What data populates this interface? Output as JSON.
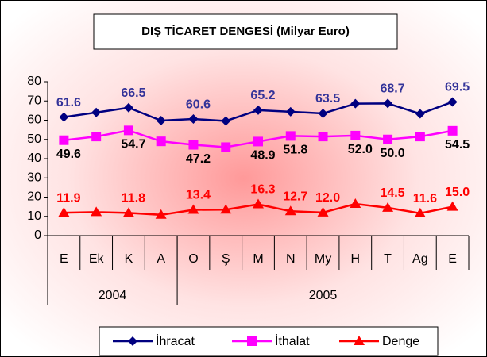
{
  "chart_data": {
    "type": "line",
    "title": "DIŞ TİCARET DENGESİ (Milyar Euro)",
    "categories": [
      "E",
      "Ek",
      "K",
      "A",
      "O",
      "Ş",
      "M",
      "N",
      "My",
      "H",
      "T",
      "Ag",
      "E"
    ],
    "groups": [
      {
        "label": "2004",
        "span": 4
      },
      {
        "label": "2005",
        "span": 9
      }
    ],
    "series": [
      {
        "name": "İhracat",
        "color": "#000080",
        "label_color": "#333399",
        "marker": "diamond",
        "values": [
          61.6,
          64,
          66.5,
          59.8,
          60.6,
          59.6,
          65.2,
          64.4,
          63.5,
          68.6,
          68.7,
          63.3,
          69.5
        ],
        "value_labels": [
          "61.6",
          null,
          "66.5",
          null,
          "60.6",
          null,
          "65.2",
          null,
          "63.5",
          null,
          "68.7",
          null,
          "69.5"
        ]
      },
      {
        "name": "İthalat",
        "color": "#ff00ff",
        "label_color": "#000000",
        "marker": "square",
        "values": [
          49.6,
          51.5,
          54.7,
          49,
          47.2,
          46,
          48.9,
          51.8,
          51.5,
          52,
          50,
          51.5,
          54.5
        ],
        "value_labels": [
          "49.6",
          null,
          "54.7",
          null,
          "47.2",
          null,
          "48.9",
          "51.8",
          null,
          "52.0",
          "50.0",
          null,
          "54.5"
        ]
      },
      {
        "name": "Denge",
        "color": "#ff0000",
        "label_color": "#ff0000",
        "marker": "triangle",
        "values": [
          11.9,
          12.2,
          11.8,
          10.8,
          13.4,
          13.5,
          16.3,
          12.7,
          12,
          16.5,
          14.5,
          11.6,
          15
        ],
        "value_labels": [
          "11.9",
          null,
          "11.8",
          null,
          "13.4",
          null,
          "16.3",
          "12.7",
          "12.0",
          null,
          "14.5",
          "11.6",
          "15.0"
        ]
      }
    ],
    "ylim": [
      0,
      80
    ],
    "yticks": [
      0,
      10,
      20,
      30,
      40,
      50,
      60,
      70,
      80
    ],
    "grid": false,
    "legend": "bottom"
  }
}
